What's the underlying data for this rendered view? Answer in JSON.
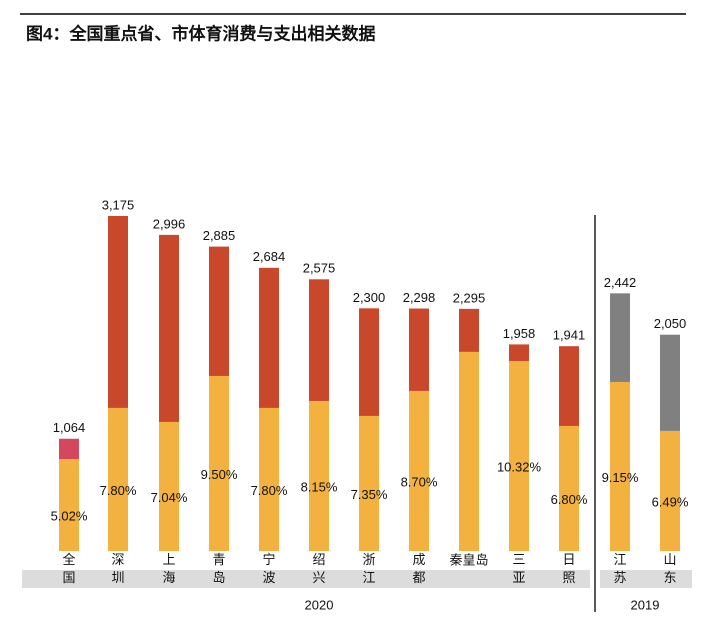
{
  "chart_data": {
    "type": "stacked_bar",
    "title": "图4：全国重点省、市体育消费与支出相关数据",
    "categories": [
      "全国",
      "深圳",
      "上海",
      "青岛",
      "宁波",
      "绍兴",
      "浙江",
      "成都",
      "秦皇岛",
      "三亚",
      "日照",
      "江苏",
      "山东"
    ],
    "groups": [
      {
        "label": "2020",
        "count": 11
      },
      {
        "label": "2019",
        "count": 2
      }
    ],
    "series": [
      {
        "color": "#f3b13f",
        "values": [
          872,
          1356,
          1223,
          1659,
          1356,
          1422,
          1280,
          1517,
          1887,
          1801,
          1185,
          1602,
          1138
        ],
        "value_labels": [
          "5.02%",
          "7.80%",
          "7.04%",
          "9.50%",
          "7.80%",
          "8.15%",
          "7.35%",
          "8.70%",
          null,
          "10.32%",
          "6.80%",
          "9.15%",
          "6.49%"
        ]
      },
      {
        "colors": [
          "#d4485e",
          "#c9472b",
          "#c9472b",
          "#c9472b",
          "#c9472b",
          "#c9472b",
          "#c9472b",
          "#c9472b",
          "#c9472b",
          "#c9472b",
          "#c9472b",
          "#808080",
          "#808080"
        ],
        "values": [
          192,
          1819,
          1773,
          1226,
          1328,
          1153,
          1020,
          781,
          408,
          157,
          756,
          840,
          912
        ]
      }
    ],
    "totals": {
      "values": [
        1064,
        3175,
        2996,
        2885,
        2684,
        2575,
        2300,
        2298,
        2295,
        1958,
        1941,
        2442,
        2050
      ],
      "value_labels": [
        "1,064",
        "3,175",
        "2,996",
        "2,885",
        "2,684",
        "2,575",
        "2,300",
        "2,298",
        "2,295",
        "1,958",
        "1,941",
        "2,442",
        "2,050"
      ]
    }
  }
}
